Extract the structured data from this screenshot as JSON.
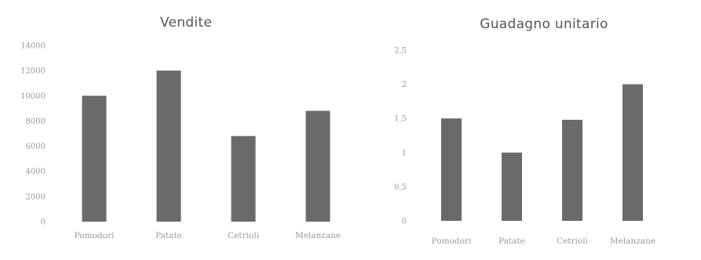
{
  "chart_data": [
    {
      "type": "bar",
      "title": "Vendite",
      "categories": [
        "Pomodori",
        "Patate",
        "Cetrioli",
        "Melanzane"
      ],
      "values": [
        10000,
        12000,
        6800,
        8800
      ],
      "ylim": [
        0,
        14000
      ],
      "yticks": [
        "0",
        "2000",
        "4000",
        "6000",
        "8000",
        "10000",
        "12000",
        "14000"
      ],
      "grid": false,
      "bar_color": "#6a6a6a"
    },
    {
      "type": "bar",
      "title": "Guadagno unitario",
      "categories": [
        "Pomodori",
        "Patate",
        "Cetrioli",
        "Melanzane"
      ],
      "values": [
        1.5,
        1.0,
        1.48,
        2.0
      ],
      "ylim": [
        0,
        2.5
      ],
      "yticks": [
        "0",
        "0,5",
        "1",
        "1,5",
        "2",
        "2,5"
      ],
      "grid": false,
      "bar_color": "#6a6a6a"
    }
  ]
}
